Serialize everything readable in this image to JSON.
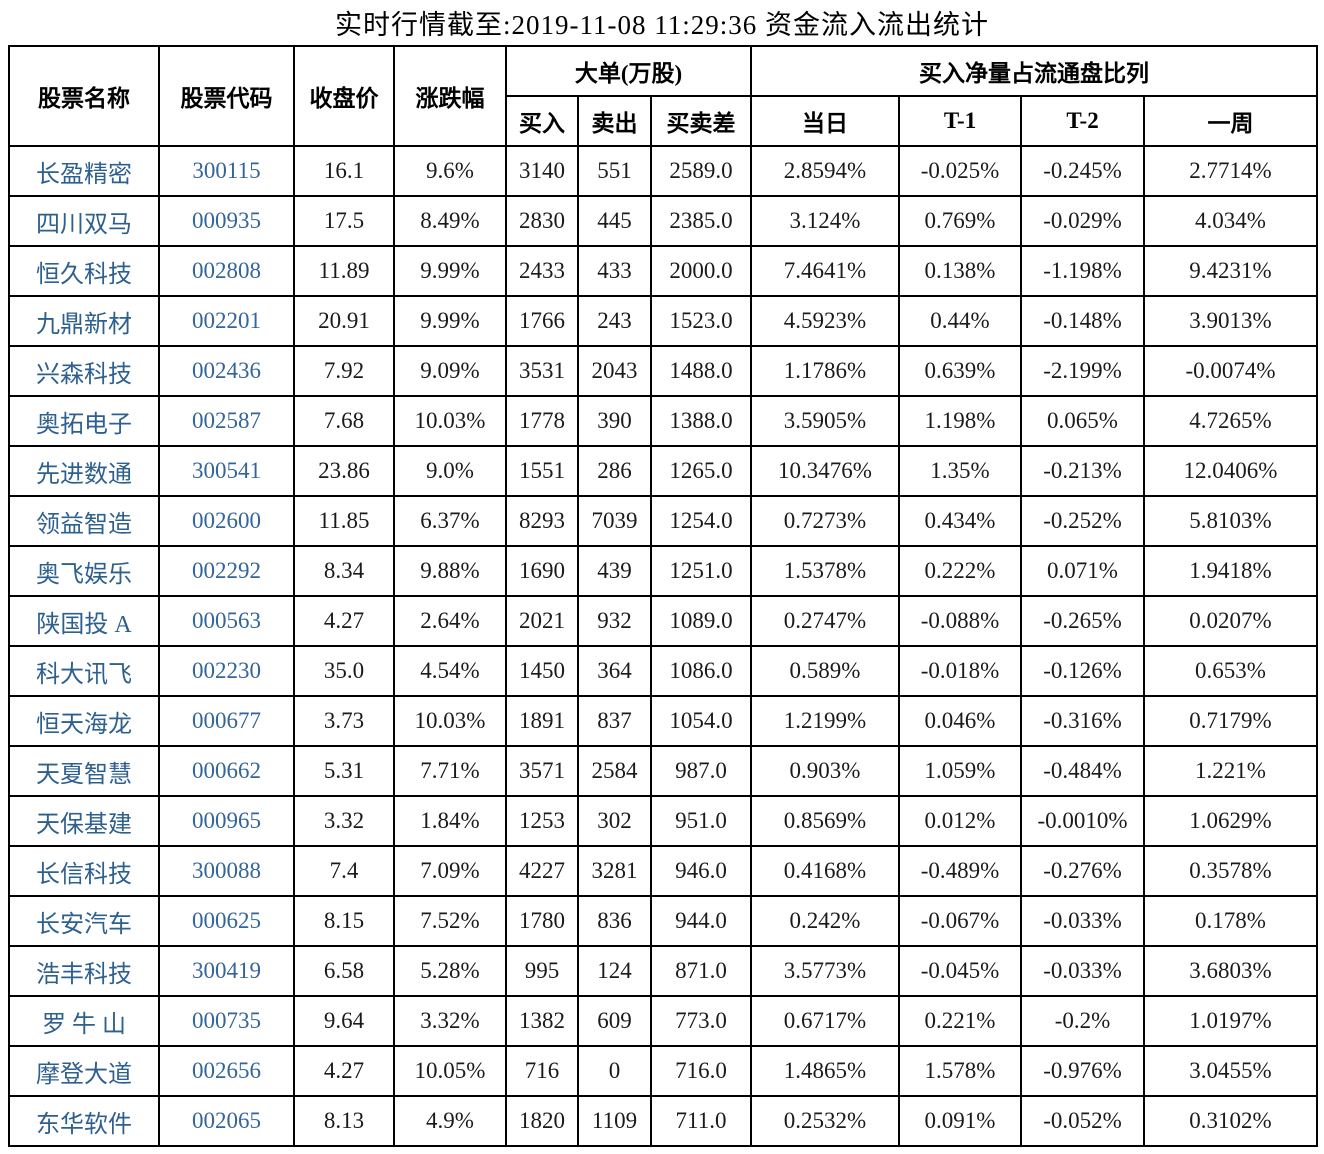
{
  "title": "实时行情截至:2019-11-08 11:29:36 资金流入流出统计",
  "colors": {
    "stock_name_text": "#2e608f",
    "stock_code_text": "#33659a",
    "body_text": "#1a1a1a",
    "border": "#000000",
    "background": "#ffffff"
  },
  "table": {
    "header_groups": {
      "stock_name": "股票名称",
      "stock_code": "股票代码",
      "close_price": "收盘价",
      "change_pct": "涨跌幅",
      "big_orders": "大单(万股)",
      "net_buy_ratio": "买入净量占流通盘比列"
    },
    "sub_headers": {
      "buy": "买入",
      "sell": "卖出",
      "diff": "买卖差",
      "today": "当日",
      "t1": "T-1",
      "t2": "T-2",
      "week": "一周"
    },
    "rows": [
      [
        "长盈精密",
        "300115",
        "16.1",
        "9.6%",
        "3140",
        "551",
        "2589.0",
        "2.8594%",
        "-0.025%",
        "-0.245%",
        "2.7714%"
      ],
      [
        "四川双马",
        "000935",
        "17.5",
        "8.49%",
        "2830",
        "445",
        "2385.0",
        "3.124%",
        "0.769%",
        "-0.029%",
        "4.034%"
      ],
      [
        "恒久科技",
        "002808",
        "11.89",
        "9.99%",
        "2433",
        "433",
        "2000.0",
        "7.4641%",
        "0.138%",
        "-1.198%",
        "9.4231%"
      ],
      [
        "九鼎新材",
        "002201",
        "20.91",
        "9.99%",
        "1766",
        "243",
        "1523.0",
        "4.5923%",
        "0.44%",
        "-0.148%",
        "3.9013%"
      ],
      [
        "兴森科技",
        "002436",
        "7.92",
        "9.09%",
        "3531",
        "2043",
        "1488.0",
        "1.1786%",
        "0.639%",
        "-2.199%",
        "-0.0074%"
      ],
      [
        "奥拓电子",
        "002587",
        "7.68",
        "10.03%",
        "1778",
        "390",
        "1388.0",
        "3.5905%",
        "1.198%",
        "0.065%",
        "4.7265%"
      ],
      [
        "先进数通",
        "300541",
        "23.86",
        "9.0%",
        "1551",
        "286",
        "1265.0",
        "10.3476%",
        "1.35%",
        "-0.213%",
        "12.0406%"
      ],
      [
        "领益智造",
        "002600",
        "11.85",
        "6.37%",
        "8293",
        "7039",
        "1254.0",
        "0.7273%",
        "0.434%",
        "-0.252%",
        "5.8103%"
      ],
      [
        "奥飞娱乐",
        "002292",
        "8.34",
        "9.88%",
        "1690",
        "439",
        "1251.0",
        "1.5378%",
        "0.222%",
        "0.071%",
        "1.9418%"
      ],
      [
        "陕国投 A",
        "000563",
        "4.27",
        "2.64%",
        "2021",
        "932",
        "1089.0",
        "0.2747%",
        "-0.088%",
        "-0.265%",
        "0.0207%"
      ],
      [
        "科大讯飞",
        "002230",
        "35.0",
        "4.54%",
        "1450",
        "364",
        "1086.0",
        "0.589%",
        "-0.018%",
        "-0.126%",
        "0.653%"
      ],
      [
        "恒天海龙",
        "000677",
        "3.73",
        "10.03%",
        "1891",
        "837",
        "1054.0",
        "1.2199%",
        "0.046%",
        "-0.316%",
        "0.7179%"
      ],
      [
        "天夏智慧",
        "000662",
        "5.31",
        "7.71%",
        "3571",
        "2584",
        "987.0",
        "0.903%",
        "1.059%",
        "-0.484%",
        "1.221%"
      ],
      [
        "天保基建",
        "000965",
        "3.32",
        "1.84%",
        "1253",
        "302",
        "951.0",
        "0.8569%",
        "0.012%",
        "-0.0010%",
        "1.0629%"
      ],
      [
        "长信科技",
        "300088",
        "7.4",
        "7.09%",
        "4227",
        "3281",
        "946.0",
        "0.4168%",
        "-0.489%",
        "-0.276%",
        "0.3578%"
      ],
      [
        "长安汽车",
        "000625",
        "8.15",
        "7.52%",
        "1780",
        "836",
        "944.0",
        "0.242%",
        "-0.067%",
        "-0.033%",
        "0.178%"
      ],
      [
        "浩丰科技",
        "300419",
        "6.58",
        "5.28%",
        "995",
        "124",
        "871.0",
        "3.5773%",
        "-0.045%",
        "-0.033%",
        "3.6803%"
      ],
      [
        "罗 牛 山",
        "000735",
        "9.64",
        "3.32%",
        "1382",
        "609",
        "773.0",
        "0.6717%",
        "0.221%",
        "-0.2%",
        "1.0197%"
      ],
      [
        "摩登大道",
        "002656",
        "4.27",
        "10.05%",
        "716",
        "0",
        "716.0",
        "1.4865%",
        "1.578%",
        "-0.976%",
        "3.0455%"
      ],
      [
        "东华软件",
        "002065",
        "8.13",
        "4.9%",
        "1820",
        "1109",
        "711.0",
        "0.2532%",
        "0.091%",
        "-0.052%",
        "0.3102%"
      ]
    ]
  }
}
